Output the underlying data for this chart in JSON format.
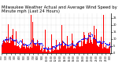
{
  "title": "Milwaukee Weather Actual and Average Wind Speed by Minute mph (Last 24 Hours)",
  "title_fontsize": 3.8,
  "bg_color": "#ffffff",
  "bar_color": "#ff0000",
  "dot_color": "#0000ff",
  "ylim": [
    0,
    28
  ],
  "yticks": [
    0,
    5,
    10,
    15,
    20,
    25
  ],
  "n_points": 1440,
  "seed": 42,
  "n_xticks": 25,
  "avg_window": 30
}
